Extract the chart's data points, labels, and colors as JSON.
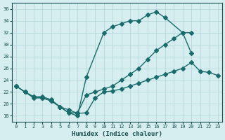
{
  "xlabel": "Humidex (Indice chaleur)",
  "bg_color": "#d6eef0",
  "grid_color": "#b0d4d8",
  "line_color": "#1a6b6b",
  "xlim": [
    -0.5,
    23.5
  ],
  "ylim": [
    17,
    37
  ],
  "xticks": [
    0,
    1,
    2,
    3,
    4,
    5,
    6,
    7,
    8,
    9,
    10,
    11,
    12,
    13,
    14,
    15,
    16,
    17,
    18,
    19,
    20,
    21,
    22,
    23
  ],
  "yticks": [
    18,
    20,
    22,
    24,
    26,
    28,
    30,
    32,
    34,
    36
  ],
  "line1_x": [
    0,
    1,
    2,
    3,
    4,
    5,
    6,
    7,
    8,
    10,
    11,
    12,
    13,
    14,
    15,
    16,
    17,
    19,
    20
  ],
  "line1_y": [
    23,
    22,
    21,
    21,
    20.5,
    19.5,
    18.5,
    18,
    24.5,
    32,
    33,
    33.5,
    34,
    34,
    35,
    35.5,
    34.5,
    32,
    28.5
  ],
  "line2_x": [
    0,
    1,
    2,
    3,
    4,
    5,
    6,
    7,
    8,
    9,
    10,
    11,
    12,
    13,
    14,
    15,
    16,
    17,
    18,
    19,
    20
  ],
  "line2_y": [
    23,
    22,
    21.2,
    21.0,
    20.5,
    19.5,
    18.5,
    18.5,
    21.5,
    22,
    22.5,
    23,
    24,
    25,
    26,
    27.5,
    29,
    30,
    31,
    32,
    32
  ],
  "line3_x": [
    0,
    1,
    2,
    3,
    4,
    5,
    6,
    7,
    8,
    9,
    10,
    11,
    12,
    13,
    14,
    15,
    16,
    17,
    18,
    19,
    20,
    21,
    22,
    23
  ],
  "line3_y": [
    23,
    22,
    21.2,
    21.2,
    20.7,
    19.5,
    19.0,
    18.4,
    18.5,
    21,
    22,
    22.2,
    22.5,
    23,
    23.5,
    24,
    24.5,
    25,
    25.5,
    26,
    27,
    25.5,
    25.3,
    24.8
  ]
}
